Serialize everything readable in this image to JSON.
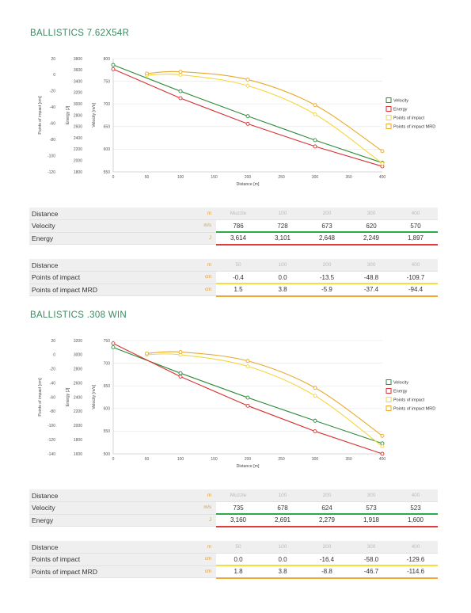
{
  "colors": {
    "velocity": "#2e8b3a",
    "energy": "#d93030",
    "poi": "#f5d63a",
    "poi_mrd": "#e9a92c",
    "title": "#3a8a60"
  },
  "sections": [
    {
      "title": "BALLISTICS 7.62X54R",
      "chart_data": {
        "type": "line",
        "xlabel": "Distance [m]",
        "xlim": [
          0,
          400
        ],
        "xticks": [
          0,
          50,
          100,
          150,
          200,
          250,
          300,
          350,
          400
        ],
        "axes": [
          {
            "label": "Points of impact [cm]",
            "ticks": [
              20,
              0,
              -20,
              -40,
              -60,
              -80,
              -100,
              -120
            ]
          },
          {
            "label": "Energy [J]",
            "ticks": [
              3800,
              3600,
              3400,
              3200,
              3000,
              2800,
              2600,
              2400,
              2200,
              2000,
              1800
            ]
          },
          {
            "label": "Velocity [m/s]",
            "ticks": [
              800,
              750,
              700,
              650,
              600,
              550
            ]
          }
        ],
        "poi_range": [
          -120,
          20
        ],
        "energy_range": [
          1800,
          3800
        ],
        "velocity_range": [
          550,
          800
        ],
        "series": [
          {
            "name": "Velocity",
            "axis": "velocity",
            "x": [
              0,
              100,
              200,
              300,
              400
            ],
            "values": [
              786,
              728,
              673,
              620,
              570
            ]
          },
          {
            "name": "Energy",
            "axis": "energy",
            "x": [
              0,
              100,
              200,
              300,
              400
            ],
            "values": [
              3614,
              3101,
              2648,
              2249,
              1897
            ]
          },
          {
            "name": "Points of impact",
            "axis": "poi",
            "x": [
              50,
              100,
              200,
              300,
              400
            ],
            "values": [
              -0.4,
              0.0,
              -13.5,
              -48.8,
              -109.7
            ]
          },
          {
            "name": "Points of impact MRD",
            "axis": "poi",
            "x": [
              50,
              100,
              200,
              300,
              400
            ],
            "values": [
              1.5,
              3.8,
              -5.9,
              -37.4,
              -94.4
            ]
          }
        ],
        "legend_position": "right"
      },
      "table1": {
        "rows": [
          {
            "label": "Distance",
            "unit": "m",
            "values": [
              "Muzzle",
              "100",
              "200",
              "300",
              "400"
            ]
          },
          {
            "label": "Velocity",
            "unit": "m/s",
            "values": [
              "786",
              "728",
              "673",
              "620",
              "570"
            ]
          },
          {
            "label": "Energy",
            "unit": "J",
            "values": [
              "3,614",
              "3,101",
              "2,648",
              "2,249",
              "1,897"
            ]
          }
        ]
      },
      "table2": {
        "rows": [
          {
            "label": "Distance",
            "unit": "m",
            "values": [
              "50",
              "100",
              "200",
              "300",
              "400"
            ]
          },
          {
            "label": "Points of impact",
            "unit": "cm",
            "values": [
              "-0.4",
              "0.0",
              "-13.5",
              "-48.8",
              "-109.7"
            ]
          },
          {
            "label": "Points of impact MRD",
            "unit": "cm",
            "values": [
              "1.5",
              "3.8",
              "-5.9",
              "-37.4",
              "-94.4"
            ]
          }
        ]
      }
    },
    {
      "title": "BALLISTICS .308 WIN",
      "chart_data": {
        "type": "line",
        "xlabel": "Distance [m]",
        "xlim": [
          0,
          400
        ],
        "xticks": [
          0,
          50,
          100,
          150,
          200,
          250,
          300,
          350,
          400
        ],
        "axes": [
          {
            "label": "Points of impact [cm]",
            "ticks": [
              20,
              0,
              -20,
              -40,
              -60,
              -80,
              -100,
              -120,
              -140
            ]
          },
          {
            "label": "Energy [J]",
            "ticks": [
              3200,
              3000,
              2800,
              2600,
              2400,
              2200,
              2000,
              1800,
              1600
            ]
          },
          {
            "label": "Velocity [m/s]",
            "ticks": [
              750,
              700,
              650,
              600,
              550,
              500
            ]
          }
        ],
        "poi_range": [
          -140,
          20
        ],
        "energy_range": [
          1600,
          3200
        ],
        "velocity_range": [
          500,
          750
        ],
        "series": [
          {
            "name": "Velocity",
            "axis": "velocity",
            "x": [
              0,
              100,
              200,
              300,
              400
            ],
            "values": [
              735,
              678,
              624,
              573,
              523
            ]
          },
          {
            "name": "Energy",
            "axis": "energy",
            "x": [
              0,
              100,
              200,
              300,
              400
            ],
            "values": [
              3160,
              2691,
              2279,
              1918,
              1600
            ]
          },
          {
            "name": "Points of impact",
            "axis": "poi",
            "x": [
              50,
              100,
              200,
              300,
              400
            ],
            "values": [
              0.0,
              0.0,
              -16.4,
              -58.0,
              -129.6
            ]
          },
          {
            "name": "Points of impact MRD",
            "axis": "poi",
            "x": [
              50,
              100,
              200,
              300,
              400
            ],
            "values": [
              1.8,
              3.8,
              -8.8,
              -46.7,
              -114.6
            ]
          }
        ],
        "legend_position": "right"
      },
      "table1": {
        "rows": [
          {
            "label": "Distance",
            "unit": "m",
            "values": [
              "Muzzle",
              "100",
              "200",
              "300",
              "400"
            ]
          },
          {
            "label": "Velocity",
            "unit": "m/s",
            "values": [
              "735",
              "678",
              "624",
              "573",
              "523"
            ]
          },
          {
            "label": "Energy",
            "unit": "J",
            "values": [
              "3,160",
              "2,691",
              "2,279",
              "1,918",
              "1,600"
            ]
          }
        ]
      },
      "table2": {
        "rows": [
          {
            "label": "Distance",
            "unit": "m",
            "values": [
              "50",
              "100",
              "200",
              "300",
              "400"
            ]
          },
          {
            "label": "Points of impact",
            "unit": "cm",
            "values": [
              "0.0",
              "0.0",
              "-16.4",
              "-58.0",
              "-129.6"
            ]
          },
          {
            "label": "Points of impact MRD",
            "unit": "cm",
            "values": [
              "1.8",
              "3.8",
              "-8.8",
              "-46.7",
              "-114.6"
            ]
          }
        ]
      }
    }
  ]
}
